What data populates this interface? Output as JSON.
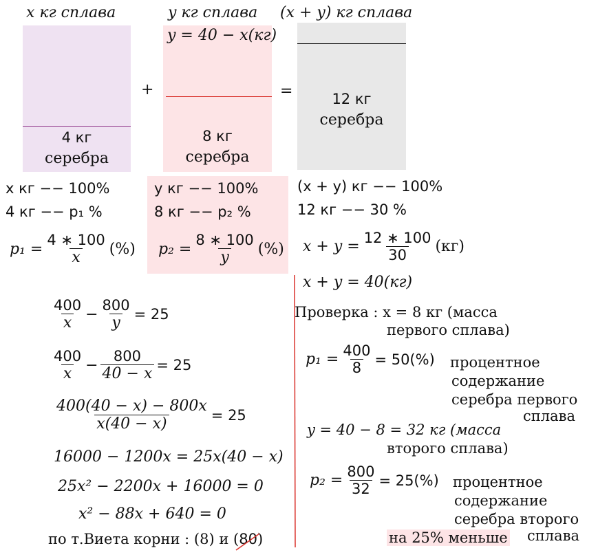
{
  "diagram": {
    "label_x": "x кг сплава",
    "label_y": "y кг сплава",
    "label_sum": "(x + y) кг сплава",
    "y_formula": "y = 40 − x(кг)",
    "plus": "+",
    "equals": "=",
    "box1_amount": "4 кг",
    "box1_word": "серебра",
    "box2_amount": "8 кг",
    "box2_word": "серебра",
    "box3_amount": "12 кг",
    "box3_word": "серебра",
    "colors": {
      "lavender": "#efe2f2",
      "pink": "#fde4e6",
      "grey": "#e8e8e8",
      "purple_line": "#8a2b83",
      "red_line": "#d9302a"
    }
  },
  "proportions": {
    "left": {
      "r1": "x кг  −− 100%",
      "r2": "4 кг  −−    p₁ %",
      "f_lhs": "p₁ =",
      "f_num": "4 ∗ 100",
      "f_den": "x",
      "f_rhs": "(%)"
    },
    "mid": {
      "r1": "y кг  −− 100%",
      "r2": "8 кг  −−    p₂ %",
      "f_lhs": "p₂ =",
      "f_num": "8 ∗ 100",
      "f_den": "y",
      "f_rhs": "(%)"
    },
    "right": {
      "r1": "(x + y) кг  −− 100%",
      "r2": "12 кг        −−   30 %",
      "f_lhs": "x + y =",
      "f_num": "12 ∗ 100",
      "f_den": "30",
      "f_rhs": "(кг)",
      "sum": "x + y = 40(кг)"
    }
  },
  "solution": {
    "e1_n1": "400",
    "e1_d1": "x",
    "e1_minus": "−",
    "e1_n2": "800",
    "e1_d2": "y",
    "e1_rhs": "= 25",
    "e2_n1": "400",
    "e2_d1": "x",
    "e2_minus": "−",
    "e2_n2": "800",
    "e2_d2": "40 − x",
    "e2_rhs": "= 25",
    "e3_num": "400(40 − x) − 800x",
    "e3_den": "x(40 − x)",
    "e3_rhs": "= 25",
    "e4": "16000 − 1200x = 25x(40 − x)",
    "e5": "25x² − 2200x + 16000 = 0",
    "e6": "x² − 88x + 640 = 0",
    "roots_text": "по т.Виета корни :  (8) и (",
    "root2": "80",
    "roots_close": ")"
  },
  "check": {
    "title": "Проверка :  x = 8 кг (масса",
    "title2": "первого сплава)",
    "p1_lhs": "p₁ =",
    "p1_num": "400",
    "p1_den": "8",
    "p1_rhs": "= 50(%)",
    "p1_desc1": "процентное",
    "p1_desc2": "содержание",
    "p1_desc3": "серебра первого",
    "p1_desc4": "сплава",
    "y_line": "y = 40 − 8  =  32 кг (масса",
    "y_line2": "второго сплава)",
    "p2_lhs": "p₂ =",
    "p2_num": "800",
    "p2_den": "32",
    "p2_rhs": "= 25(%)",
    "p2_desc1": "процентное",
    "p2_desc2": "содержание",
    "p2_desc3": "серебра второго",
    "p2_desc4": "сплава",
    "answer": "на 25% меньше"
  }
}
